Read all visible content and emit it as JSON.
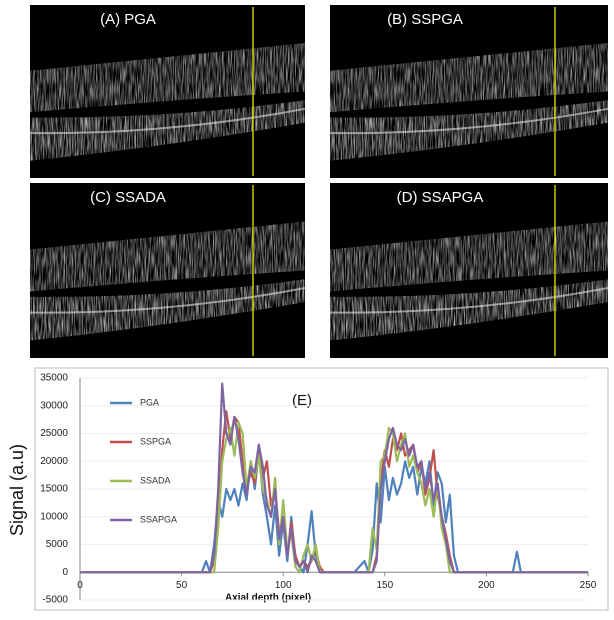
{
  "panels": [
    {
      "label": "(A) PGA"
    },
    {
      "label": "(B) SSPGA"
    },
    {
      "label": "(C) SSADA"
    },
    {
      "label": "(D) SSAPGA"
    }
  ],
  "chart_data": {
    "type": "line",
    "annotation": "(E)",
    "x_label": "Axial depth (pixel)",
    "y_label": "Signal (a.u)",
    "xlim": [
      0,
      250
    ],
    "xticks": [
      0,
      50,
      100,
      150,
      200,
      250
    ],
    "ylim": [
      -5000,
      35000
    ],
    "yticks": [
      -5000,
      0,
      5000,
      10000,
      15000,
      20000,
      25000,
      30000,
      35000
    ],
    "grid": true,
    "legend": "upper left",
    "x": [
      0,
      55,
      60,
      62,
      64,
      66,
      68,
      70,
      72,
      74,
      76,
      78,
      80,
      82,
      84,
      86,
      88,
      90,
      92,
      94,
      96,
      98,
      100,
      102,
      104,
      106,
      108,
      110,
      112,
      114,
      116,
      118,
      120,
      125,
      130,
      135,
      140,
      142,
      144,
      146,
      148,
      150,
      152,
      154,
      156,
      158,
      160,
      162,
      164,
      166,
      168,
      170,
      172,
      174,
      176,
      178,
      180,
      182,
      184,
      186,
      188,
      190,
      200,
      210,
      213,
      215,
      217,
      220,
      250
    ],
    "series": [
      {
        "name": "PGA",
        "color": "#4f81bd",
        "values": [
          0,
          0,
          0,
          2000,
          0,
          5000,
          13000,
          10000,
          15000,
          13000,
          15000,
          12000,
          16000,
          13000,
          20000,
          15000,
          22000,
          14000,
          10000,
          5000,
          12000,
          3000,
          9000,
          2000,
          10000,
          2000,
          1000,
          0,
          5000,
          11000,
          3000,
          0,
          0,
          0,
          0,
          0,
          2000,
          0,
          4000,
          16000,
          9000,
          19000,
          13000,
          17000,
          14000,
          16000,
          20000,
          17000,
          19000,
          14000,
          19000,
          16000,
          20000,
          12000,
          18000,
          16000,
          9000,
          14000,
          3000,
          0,
          0,
          0,
          0,
          0,
          0,
          3700,
          0,
          0,
          0
        ]
      },
      {
        "name": "SSPGA",
        "color": "#c0504d",
        "values": [
          0,
          0,
          0,
          0,
          0,
          2000,
          10000,
          22000,
          29000,
          24000,
          28000,
          27000,
          20000,
          15000,
          18000,
          16000,
          22000,
          17000,
          20000,
          12000,
          15000,
          7000,
          10000,
          3000,
          9000,
          3000,
          1000,
          2000,
          1000,
          2000,
          4000,
          1000,
          0,
          0,
          0,
          0,
          0,
          0,
          0,
          3000,
          16000,
          22000,
          19000,
          24000,
          22000,
          25000,
          21000,
          22000,
          23000,
          18000,
          20000,
          14000,
          17000,
          22000,
          14000,
          10000,
          7000,
          3000,
          0,
          0,
          0,
          0,
          0,
          0,
          0,
          0,
          0,
          0,
          0
        ]
      },
      {
        "name": "SSADA",
        "color": "#9bbb59",
        "values": [
          0,
          0,
          0,
          0,
          0,
          0,
          8000,
          20000,
          24000,
          26000,
          21000,
          27000,
          25000,
          15000,
          20000,
          17000,
          21000,
          15000,
          13000,
          10000,
          17000,
          5000,
          13000,
          4000,
          7000,
          1000,
          0,
          3000,
          5000,
          2000,
          5000,
          0,
          0,
          0,
          0,
          0,
          0,
          0,
          8000,
          4000,
          20000,
          21000,
          26000,
          25000,
          20000,
          23000,
          25000,
          19000,
          21000,
          18000,
          16000,
          12000,
          15000,
          10000,
          16000,
          8000,
          5000,
          0,
          0,
          0,
          0,
          0,
          0,
          0,
          0,
          0,
          0,
          0,
          0
        ]
      },
      {
        "name": "SSAPGA",
        "color": "#8064a2",
        "values": [
          0,
          0,
          0,
          0,
          0,
          3000,
          15000,
          34000,
          25000,
          23000,
          28000,
          24000,
          18000,
          14000,
          19000,
          18000,
          23000,
          19000,
          12000,
          10000,
          15000,
          6000,
          10000,
          3000,
          8000,
          2000,
          1000,
          2000,
          0,
          3000,
          2000,
          0,
          0,
          0,
          0,
          0,
          0,
          0,
          0,
          2000,
          15000,
          20000,
          24000,
          26000,
          23000,
          22000,
          24000,
          21000,
          23000,
          19000,
          20000,
          15000,
          18000,
          13000,
          16000,
          10000,
          6000,
          2000,
          0,
          0,
          0,
          0,
          0,
          0,
          0,
          0,
          0,
          0,
          0
        ]
      }
    ]
  }
}
